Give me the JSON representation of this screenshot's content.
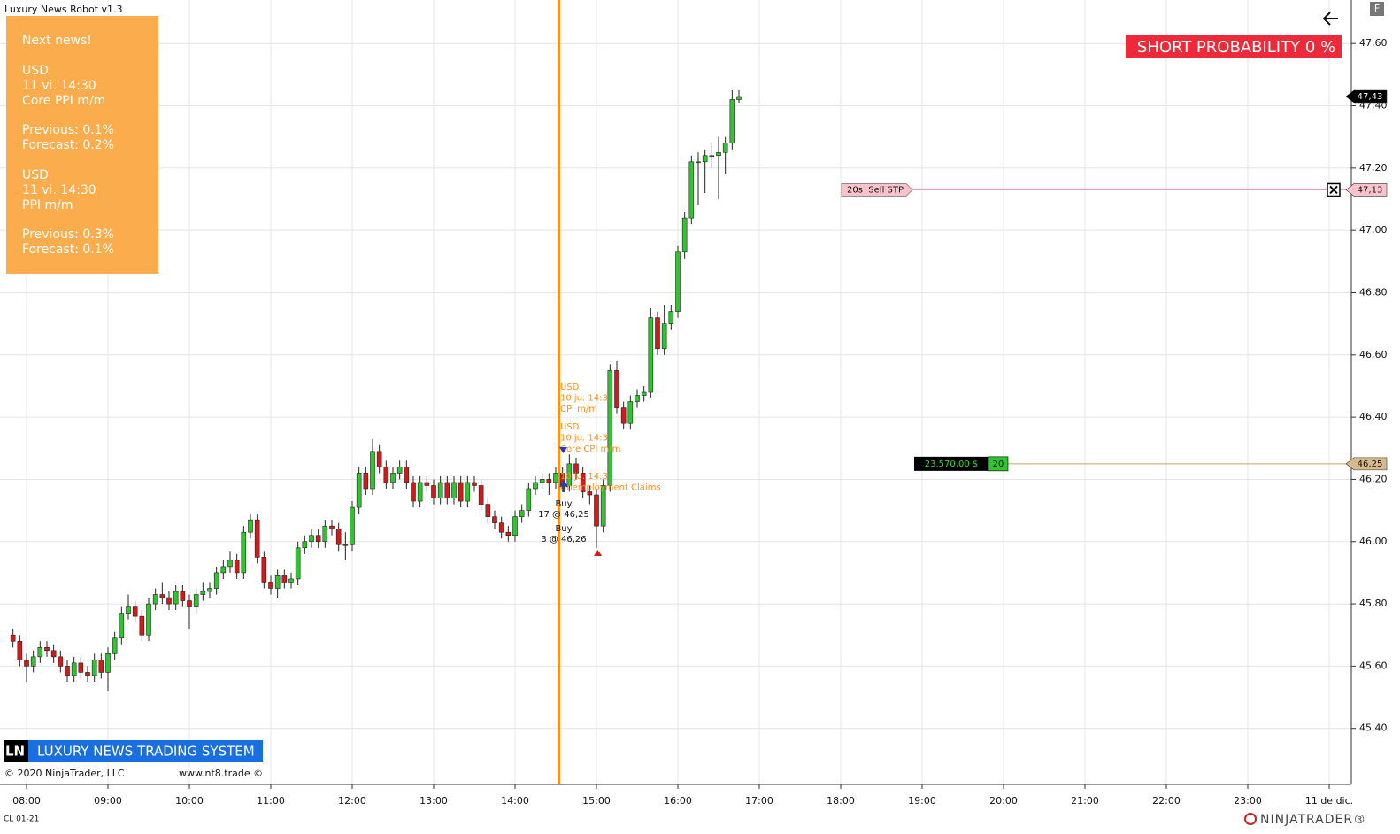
{
  "window": {
    "title": "Luxury News Robot v1.3",
    "button": "F",
    "symbol": "CL 01-21"
  },
  "info_panel": {
    "heading": "Next news!",
    "news": [
      {
        "currency": "USD",
        "time": "11 vi. 14:30",
        "event": "Core PPI m/m",
        "previous": "Previous: 0.1%",
        "forecast": "Forecast: 0.2%"
      },
      {
        "currency": "USD",
        "time": "11 vi. 14:30",
        "event": "PPI m/m",
        "previous": "Previous: 0.3%",
        "forecast": "Forecast: 0.1%"
      }
    ]
  },
  "short_probability": "SHORT PROBABILITY 0 %",
  "chart_data": {
    "type": "candlestick",
    "ylim": [
      45.22,
      47.74
    ],
    "yticks": [
      {
        "value": 47.6,
        "label": "47,60"
      },
      {
        "value": 47.4,
        "label": "47,40"
      },
      {
        "value": 47.2,
        "label": "47,20"
      },
      {
        "value": 47.0,
        "label": "47,00"
      },
      {
        "value": 46.8,
        "label": "46,80"
      },
      {
        "value": 46.6,
        "label": "46,60"
      },
      {
        "value": 46.4,
        "label": "46,40"
      },
      {
        "value": 46.2,
        "label": "46,20"
      },
      {
        "value": 46.0,
        "label": "46,00"
      },
      {
        "value": 45.8,
        "label": "45,80"
      },
      {
        "value": 45.6,
        "label": "45,60"
      },
      {
        "value": 45.4,
        "label": "45,40"
      }
    ],
    "xticks": [
      "08:00",
      "09:00",
      "10:00",
      "11:00",
      "12:00",
      "13:00",
      "14:00",
      "15:00",
      "16:00",
      "17:00",
      "18:00",
      "19:00",
      "20:00",
      "21:00",
      "22:00",
      "23:00",
      "11 de dic."
    ],
    "grid": true,
    "up_color": "#2ec52e",
    "down_color": "#d21a1a",
    "candles": {
      "x": [
        "07:50",
        "07:55",
        "08:00",
        "08:05",
        "08:10",
        "08:15",
        "08:20",
        "08:25",
        "08:30",
        "08:35",
        "08:40",
        "08:45",
        "08:50",
        "08:55",
        "09:00",
        "09:05",
        "09:10",
        "09:15",
        "09:20",
        "09:25",
        "09:30",
        "09:35",
        "09:40",
        "09:45",
        "09:50",
        "09:55",
        "10:00",
        "10:05",
        "10:10",
        "10:15",
        "10:20",
        "10:25",
        "10:30",
        "10:35",
        "10:40",
        "10:45",
        "10:50",
        "10:55",
        "11:00",
        "11:05",
        "11:10",
        "11:15",
        "11:20",
        "11:25",
        "11:30",
        "11:35",
        "11:40",
        "11:45",
        "11:50",
        "11:55",
        "12:00",
        "12:05",
        "12:10",
        "12:15",
        "12:20",
        "12:25",
        "12:30",
        "12:35",
        "12:40",
        "12:45",
        "12:50",
        "12:55",
        "13:00",
        "13:05",
        "13:10",
        "13:15",
        "13:20",
        "13:25",
        "13:30",
        "13:35",
        "13:40",
        "13:45",
        "13:50",
        "13:55",
        "14:00",
        "14:05",
        "14:10",
        "14:15",
        "14:20",
        "14:25",
        "14:30",
        "14:35",
        "14:40",
        "14:45",
        "14:50",
        "14:55",
        "15:00",
        "15:05",
        "15:10",
        "15:15",
        "15:20",
        "15:25",
        "15:30",
        "15:35",
        "15:40",
        "15:45",
        "15:50",
        "15:55",
        "16:00",
        "16:05",
        "16:10",
        "16:15",
        "16:20",
        "16:25",
        "16:30",
        "16:35",
        "16:40",
        "16:45"
      ],
      "open": [
        45.7,
        45.68,
        45.62,
        45.6,
        45.63,
        45.66,
        45.65,
        45.63,
        45.6,
        45.57,
        45.61,
        45.58,
        45.57,
        45.62,
        45.58,
        45.64,
        45.69,
        45.77,
        45.79,
        45.76,
        45.7,
        45.8,
        45.83,
        45.82,
        45.8,
        45.84,
        45.81,
        45.79,
        45.83,
        45.84,
        45.85,
        45.9,
        45.92,
        45.94,
        45.9,
        46.03,
        46.07,
        45.95,
        45.87,
        45.85,
        45.89,
        45.87,
        45.88,
        45.98,
        46.0,
        46.02,
        46.0,
        46.05,
        46.04,
        45.99,
        45.99,
        46.11,
        46.22,
        46.17,
        46.29,
        46.24,
        46.19,
        46.22,
        46.24,
        46.19,
        46.13,
        46.19,
        46.18,
        46.14,
        46.19,
        46.14,
        46.19,
        46.13,
        46.19,
        46.18,
        46.12,
        46.08,
        46.06,
        46.03,
        46.02,
        46.08,
        46.1,
        46.17,
        46.19,
        46.2,
        46.19,
        46.22,
        46.18,
        46.25,
        46.22,
        46.16,
        46.15,
        46.05,
        46.18,
        46.55,
        46.43,
        46.38,
        46.45,
        46.47,
        46.48,
        46.72,
        46.62,
        46.7,
        46.74,
        46.93,
        47.04,
        47.22,
        47.22,
        47.24,
        47.24,
        47.25,
        47.28,
        47.42
      ],
      "high": [
        45.72,
        45.7,
        45.64,
        45.65,
        45.68,
        45.68,
        45.67,
        45.65,
        45.62,
        45.63,
        45.63,
        45.6,
        45.64,
        45.64,
        45.66,
        45.71,
        45.79,
        45.83,
        45.81,
        45.78,
        45.82,
        45.85,
        45.87,
        45.84,
        45.86,
        45.86,
        45.83,
        45.85,
        45.87,
        45.87,
        45.92,
        45.94,
        45.97,
        45.96,
        46.05,
        46.09,
        46.09,
        45.97,
        45.89,
        45.91,
        45.91,
        45.9,
        46.0,
        46.02,
        46.04,
        46.04,
        46.07,
        46.07,
        46.06,
        46.03,
        46.13,
        46.24,
        46.24,
        46.33,
        46.31,
        46.26,
        46.24,
        46.26,
        46.26,
        46.21,
        46.21,
        46.21,
        46.2,
        46.21,
        46.21,
        46.21,
        46.21,
        46.21,
        46.21,
        46.2,
        46.14,
        46.1,
        46.08,
        46.05,
        46.1,
        46.12,
        46.19,
        46.21,
        46.22,
        46.22,
        46.24,
        46.24,
        46.28,
        46.27,
        46.24,
        46.18,
        46.17,
        46.2,
        46.57,
        46.58,
        46.45,
        46.47,
        46.49,
        46.5,
        46.75,
        46.74,
        46.76,
        46.76,
        46.95,
        47.06,
        47.24,
        47.25,
        47.26,
        47.28,
        47.3,
        47.3,
        47.45,
        47.45
      ],
      "low": [
        45.66,
        45.6,
        45.55,
        45.58,
        45.61,
        45.63,
        45.61,
        45.58,
        45.55,
        45.55,
        45.56,
        45.55,
        45.55,
        45.56,
        45.52,
        45.62,
        45.67,
        45.75,
        45.74,
        45.68,
        45.68,
        45.78,
        45.8,
        45.78,
        45.78,
        45.79,
        45.72,
        45.77,
        45.81,
        45.82,
        45.83,
        45.88,
        45.9,
        45.88,
        45.88,
        46.01,
        45.93,
        45.85,
        45.83,
        45.82,
        45.85,
        45.85,
        45.86,
        45.96,
        45.98,
        45.98,
        45.98,
        46.02,
        45.97,
        45.94,
        45.97,
        46.09,
        46.15,
        46.15,
        46.22,
        46.17,
        46.17,
        46.2,
        46.17,
        46.11,
        46.11,
        46.16,
        46.12,
        46.12,
        46.12,
        46.12,
        46.11,
        46.11,
        46.16,
        46.1,
        46.06,
        46.04,
        46.01,
        46.0,
        46.0,
        46.06,
        46.08,
        46.15,
        46.17,
        46.15,
        46.17,
        46.16,
        46.16,
        46.2,
        46.14,
        46.12,
        45.98,
        46.03,
        46.16,
        46.41,
        46.36,
        46.36,
        46.43,
        46.45,
        46.46,
        46.6,
        46.6,
        46.68,
        46.72,
        46.91,
        47.02,
        47.08,
        47.12,
        47.2,
        47.1,
        47.18,
        47.26,
        47.41
      ],
      "close": [
        45.68,
        45.62,
        45.6,
        45.63,
        45.66,
        45.65,
        45.63,
        45.6,
        45.57,
        45.61,
        45.58,
        45.57,
        45.62,
        45.58,
        45.64,
        45.69,
        45.77,
        45.79,
        45.76,
        45.7,
        45.8,
        45.83,
        45.82,
        45.8,
        45.84,
        45.81,
        45.79,
        45.83,
        45.84,
        45.85,
        45.9,
        45.92,
        45.94,
        45.9,
        46.03,
        46.07,
        45.95,
        45.87,
        45.85,
        45.89,
        45.87,
        45.88,
        45.98,
        46.0,
        46.02,
        46.0,
        46.05,
        46.04,
        45.99,
        45.99,
        46.11,
        46.22,
        46.17,
        46.29,
        46.24,
        46.19,
        46.22,
        46.24,
        46.19,
        46.13,
        46.19,
        46.18,
        46.14,
        46.19,
        46.14,
        46.19,
        46.13,
        46.19,
        46.18,
        46.12,
        46.08,
        46.06,
        46.03,
        46.02,
        46.08,
        46.1,
        46.17,
        46.19,
        46.2,
        46.19,
        46.22,
        46.18,
        46.25,
        46.22,
        46.16,
        46.15,
        46.05,
        46.18,
        46.55,
        46.43,
        46.38,
        46.45,
        46.47,
        46.48,
        46.72,
        46.62,
        46.7,
        46.74,
        46.93,
        47.04,
        47.22,
        47.22,
        47.24,
        47.24,
        47.25,
        47.28,
        47.42,
        47.43
      ]
    },
    "last_price": {
      "value": 47.43,
      "label": "47,43"
    },
    "news_annotations": [
      [
        "USD",
        "10 ju. 14:3",
        "CPI m/m"
      ],
      [
        "USD",
        "10 ju. 14:3",
        "Core CPI m/m"
      ],
      [
        "10 ju. 14:3",
        "Unemployment Claims"
      ]
    ],
    "fills": [
      {
        "side": "Buy",
        "text": "17 @ 46,25"
      },
      {
        "side": "Buy",
        "text": "3 @ 46,26"
      }
    ]
  },
  "orders": {
    "sell_stop": {
      "label": "20s  Sell STP",
      "price": {
        "value": 47.13,
        "label": "47,13"
      }
    },
    "position": {
      "pnl": "23.570,00 $",
      "quantity": 20,
      "price": {
        "value": 46.25,
        "label": "46,25"
      }
    }
  },
  "footer": {
    "logo_short": "LN",
    "logo_text": "LUXURY NEWS TRADING SYSTEM",
    "copyright": "© 2020 NinjaTrader, LLC",
    "site": "www.nt8.trade ©",
    "brand": "NINJATRADER®"
  }
}
